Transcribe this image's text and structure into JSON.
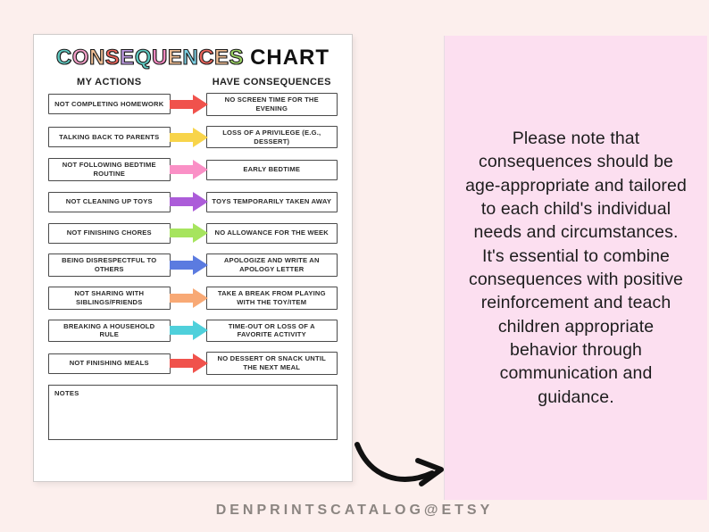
{
  "page": {
    "background": "#FCEFED",
    "footer_text": "DENPRINTSCATALOG@ETSY"
  },
  "worksheet": {
    "title_letters": [
      {
        "ch": "C",
        "color": "#5FC9C1"
      },
      {
        "ch": "O",
        "color": "#F49FC8"
      },
      {
        "ch": "N",
        "color": "#F0BE94"
      },
      {
        "ch": "S",
        "color": "#EC655C"
      },
      {
        "ch": "E",
        "color": "#BF9CE4"
      },
      {
        "ch": "Q",
        "color": "#5FC9C1"
      },
      {
        "ch": "U",
        "color": "#F287BE"
      },
      {
        "ch": "E",
        "color": "#F0BE94"
      },
      {
        "ch": "N",
        "color": "#7DD1E5"
      },
      {
        "ch": "C",
        "color": "#EC655C"
      },
      {
        "ch": "E",
        "color": "#F0BE94"
      },
      {
        "ch": "S",
        "color": "#9DD566"
      }
    ],
    "title_suffix": "CHART",
    "column_left_header": "MY ACTIONS",
    "column_right_header": "HAVE CONSEQUENCES",
    "rows": [
      {
        "action": "NOT COMPLETING HOMEWORK",
        "consequence": "NO SCREEN TIME FOR THE EVENING",
        "arrow_color": "#F0524C"
      },
      {
        "action": "TALKING BACK TO PARENTS",
        "consequence": "LOSS OF A PRIVILEGE (E.G., DESSERT)",
        "arrow_color": "#F8D44A"
      },
      {
        "action": "NOT FOLLOWING BEDTIME ROUTINE",
        "consequence": "EARLY BEDTIME",
        "arrow_color": "#FA90C6"
      },
      {
        "action": "NOT CLEANING UP TOYS",
        "consequence": "TOYS TEMPORARILY TAKEN AWAY",
        "arrow_color": "#AC5CD9"
      },
      {
        "action": "NOT FINISHING CHORES",
        "consequence": "NO ALLOWANCE FOR THE WEEK",
        "arrow_color": "#A6E45E"
      },
      {
        "action": "BEING DISRESPECTFUL TO OTHERS",
        "consequence": "APOLOGIZE AND WRITE AN APOLOGY LETTER",
        "arrow_color": "#5B7BE0"
      },
      {
        "action": "NOT SHARING WITH SIBLINGS/FRIENDS",
        "consequence": "TAKE A BREAK FROM PLAYING WITH THE TOY/ITEM",
        "arrow_color": "#F8A975"
      },
      {
        "action": "BREAKING A HOUSEHOLD RULE",
        "consequence": "TIME-OUT OR LOSS OF A FAVORITE ACTIVITY",
        "arrow_color": "#4FD0DB"
      },
      {
        "action": "NOT FINISHING MEALS",
        "consequence": "NO DESSERT OR SNACK UNTIL THE NEXT MEAL",
        "arrow_color": "#F0524C"
      }
    ],
    "notes_label": "NOTES"
  },
  "note_panel": {
    "background": "#FCDFF0",
    "text": "Please note that consequences should be age-appropriate and tailored to each child's individual needs and circumstances. It's essential to combine consequences with positive reinforcement and teach children appropriate behavior through communication and guidance."
  }
}
